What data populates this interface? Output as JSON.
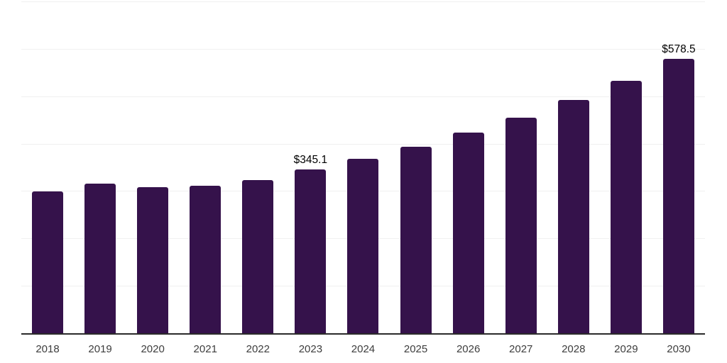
{
  "chart_data": {
    "type": "bar",
    "title": "",
    "xlabel": "",
    "ylabel": "",
    "categories": [
      "2018",
      "2019",
      "2020",
      "2021",
      "2022",
      "2023",
      "2024",
      "2025",
      "2026",
      "2027",
      "2028",
      "2029",
      "2030"
    ],
    "values": [
      299.7,
      316.1,
      308.6,
      310.9,
      323.5,
      345.1,
      368.3,
      393.6,
      423.4,
      454.8,
      492.0,
      532.3,
      578.5
    ],
    "point_labels": {
      "2023": "$345.1",
      "2030": "$578.5"
    },
    "ylim": [
      0,
      700
    ],
    "gridline_step": 100,
    "grid": true,
    "legend_position": "none",
    "bar_corner_radius_px": 3,
    "colors": {
      "bar": "#35124B",
      "gridline": "#f0f0f0",
      "axis_line": "#2b2b2b",
      "tick_label": "#3d3d3d",
      "value_label": "#000000",
      "background": "#ffffff"
    }
  }
}
